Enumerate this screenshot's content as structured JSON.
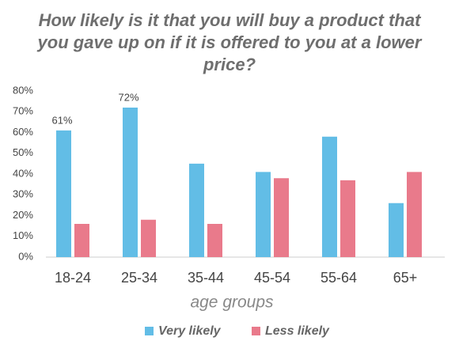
{
  "chart_data": {
    "type": "bar",
    "title": "How likely is it that you will buy a product that you gave up on if it is offered to you at a lower price?",
    "x_label": "age groups",
    "categories": [
      "18-24",
      "25-34",
      "35-44",
      "45-54",
      "55-64",
      "65+"
    ],
    "series": [
      {
        "name": "Very likely",
        "color": "#62bde6",
        "values": [
          61,
          72,
          45,
          41,
          58,
          26
        ],
        "value_labels": [
          "61%",
          "72%",
          null,
          null,
          null,
          null
        ]
      },
      {
        "name": "Less likely",
        "color": "#e97a8b",
        "values": [
          16,
          18,
          16,
          38,
          37,
          41
        ]
      }
    ],
    "ylim": [
      0,
      80
    ],
    "yticks": [
      {
        "value": 0,
        "label": "0%"
      },
      {
        "value": 10,
        "label": "10%"
      },
      {
        "value": 20,
        "label": "20%"
      },
      {
        "value": 30,
        "label": "30%"
      },
      {
        "value": 40,
        "label": "40%"
      },
      {
        "value": 50,
        "label": "50%"
      },
      {
        "value": 60,
        "label": "60%"
      },
      {
        "value": 70,
        "label": "70%"
      },
      {
        "value": 80,
        "label": "80%"
      }
    ],
    "grid": false,
    "legend": "bottom"
  }
}
